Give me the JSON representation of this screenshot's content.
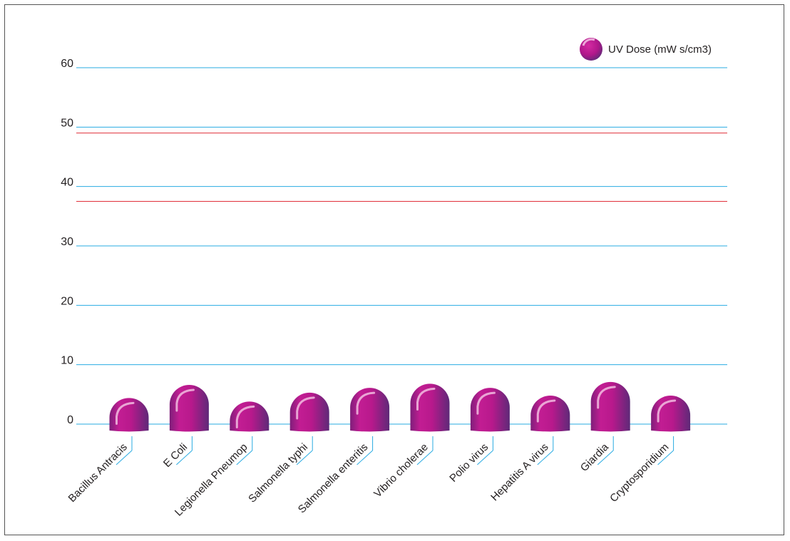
{
  "chart_data": {
    "type": "bar",
    "title": "",
    "xlabel": "",
    "ylabel": "",
    "ylim": [
      0,
      60
    ],
    "yticks": [
      0,
      10,
      20,
      30,
      40,
      50,
      60
    ],
    "yticks_text": [
      "0",
      "10",
      "20",
      "30",
      "40",
      "50",
      "60"
    ],
    "grid": true,
    "legend_position": "top-right",
    "categories": [
      "Bacillus Antracis",
      "E Coli",
      "Legionella Pneumop",
      "Salmonella typhi",
      "Salmonella enteritis",
      "Vibrio cholerae",
      "Polio virus",
      "Hepatitis A virus",
      "Giardia",
      "Cryptosporidium"
    ],
    "series": [
      {
        "name": "UV Dose (mW s/cm3)",
        "values": [
          4.4,
          6.6,
          3.8,
          5.3,
          6.1,
          6.8,
          6.1,
          4.8,
          7.1,
          4.8
        ]
      }
    ],
    "reference_lines": [
      49,
      37.5
    ],
    "colors": {
      "bar": "#b5198c",
      "bar_dark": "#6b1f74",
      "grid": "#29abe2",
      "reference": "#e0303a",
      "text": "#231f20"
    }
  }
}
